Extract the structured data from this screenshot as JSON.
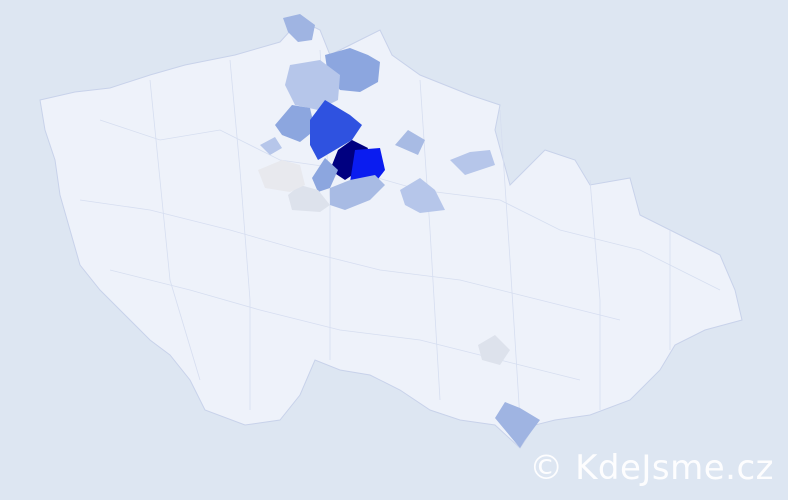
{
  "map": {
    "background": "#dde6f2",
    "base_fill": "#eef2fa",
    "border_color": "#c8d2ea",
    "highlighted_regions": [
      {
        "fill": "#000080"
      },
      {
        "fill": "#0a1cf0"
      },
      {
        "fill": "#2f52e0"
      },
      {
        "fill": "#8ca6df"
      },
      {
        "fill": "#9fb4e2"
      },
      {
        "fill": "#a8bbe4"
      },
      {
        "fill": "#b6c6ea"
      },
      {
        "fill": "#dde2ec"
      },
      {
        "fill": "#e8e9ee"
      }
    ]
  },
  "watermark": "© KdeJsme.cz"
}
